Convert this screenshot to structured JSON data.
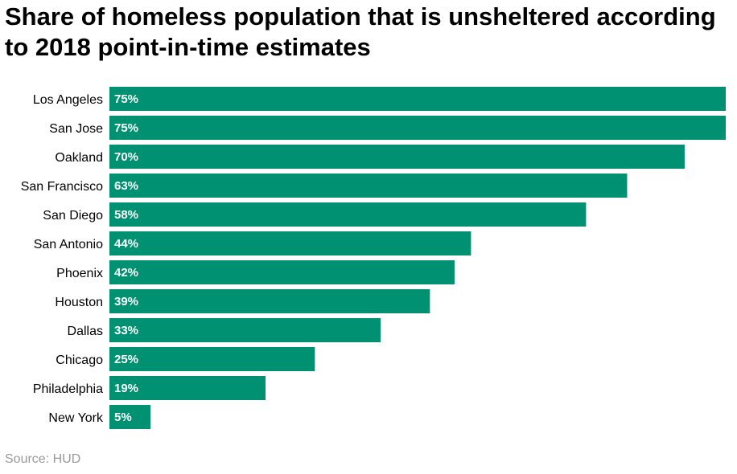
{
  "chart_data": {
    "type": "bar",
    "orientation": "horizontal",
    "title": "Share of homeless population that is unsheltered according to 2018 point-in-time estimates",
    "categories": [
      "Los Angeles",
      "San Jose",
      "Oakland",
      "San Francisco",
      "San Diego",
      "San Antonio",
      "Phoenix",
      "Houston",
      "Dallas",
      "Chicago",
      "Philadelphia",
      "New York"
    ],
    "values": [
      75,
      75,
      70,
      63,
      58,
      44,
      42,
      39,
      33,
      25,
      19,
      5
    ],
    "value_labels": [
      "75%",
      "75%",
      "70%",
      "63%",
      "58%",
      "44%",
      "42%",
      "39%",
      "33%",
      "25%",
      "19%",
      "5%"
    ],
    "xlim": [
      0,
      75
    ],
    "bar_color": "#009173",
    "label_color": "#ffffff",
    "grid": false,
    "legend": "none",
    "source": "Source: HUD"
  }
}
